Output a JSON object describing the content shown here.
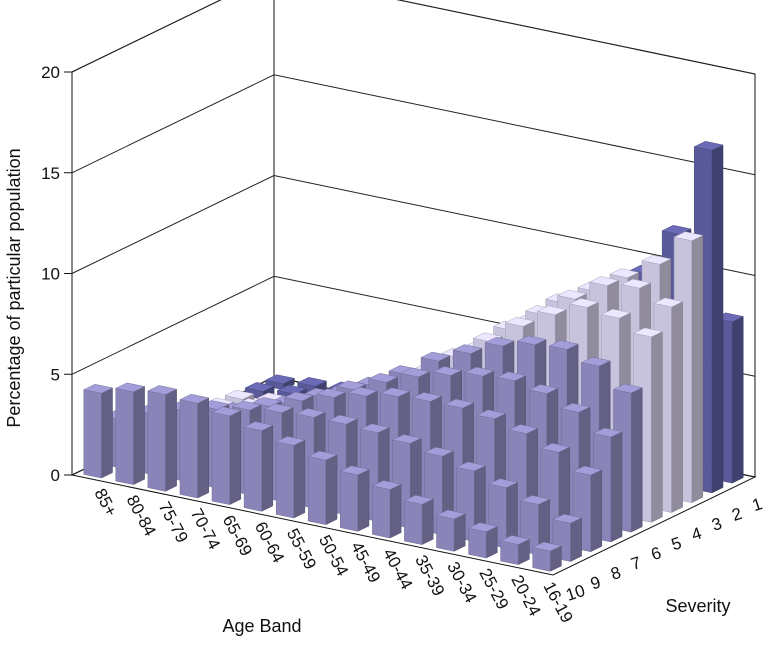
{
  "chart_data": {
    "type": "bar",
    "style": "3d-grouped-bars",
    "ylabel": "Percentage of particular population",
    "xlabel": "Age Band",
    "zlabel": "Severity",
    "ylim": [
      0,
      20
    ],
    "yticks": [
      "0",
      "5",
      "10",
      "15",
      "20"
    ],
    "categories": [
      "85+",
      "80-84",
      "75-79",
      "70-74",
      "65-69",
      "60-64",
      "55-59",
      "50-54",
      "45-49",
      "40-44",
      "35-39",
      "30-34",
      "25-29",
      "20-24",
      "16-19"
    ],
    "severity_labels": [
      "1",
      "2",
      "3",
      "4",
      "5",
      "6",
      "7",
      "8",
      "9",
      "10"
    ],
    "grid": true,
    "colors": {
      "top_band": "#5a5a9a",
      "bottom_band": "#8a85b8",
      "middle_band": "#c8c3dc"
    },
    "series": [
      {
        "name": "1",
        "values": [
          0.3,
          0.5,
          0.6,
          1.0,
          1.4,
          2.0,
          2.8,
          3.6,
          4.5,
          5.5,
          6.3,
          6.5,
          6.8,
          7.2,
          8.0
        ]
      },
      {
        "name": "2",
        "values": [
          0.4,
          0.6,
          0.7,
          1.2,
          1.6,
          2.4,
          3.2,
          4.3,
          5.4,
          6.8,
          8.0,
          9.1,
          10.2,
          12.5,
          17.0
        ]
      },
      {
        "name": "3",
        "values": [
          0.5,
          0.7,
          0.9,
          1.4,
          1.9,
          2.6,
          3.5,
          4.6,
          5.8,
          7.2,
          8.6,
          9.5,
          10.5,
          11.5,
          13.0
        ]
      },
      {
        "name": "4",
        "values": [
          0.6,
          0.9,
          1.1,
          1.6,
          2.2,
          2.9,
          3.7,
          4.8,
          6.0,
          7.4,
          8.5,
          9.6,
          10.6,
          10.8,
          10.2
        ]
      },
      {
        "name": "5",
        "values": [
          0.7,
          1.0,
          1.3,
          1.9,
          2.5,
          3.2,
          4.0,
          5.0,
          6.2,
          7.3,
          8.4,
          9.3,
          10.0,
          9.8,
          9.2
        ]
      },
      {
        "name": "6",
        "values": [
          0.9,
          1.3,
          1.7,
          2.3,
          3.0,
          3.8,
          4.6,
          5.5,
          6.5,
          7.2,
          7.9,
          8.3,
          8.4,
          7.9,
          6.9
        ]
      },
      {
        "name": "7",
        "values": [
          1.2,
          1.7,
          2.1,
          2.8,
          3.5,
          4.2,
          4.9,
          5.6,
          6.2,
          6.6,
          6.9,
          7.0,
          6.7,
          6.1,
          5.2
        ]
      },
      {
        "name": "8",
        "values": [
          1.6,
          2.2,
          2.7,
          3.3,
          3.9,
          4.5,
          5.0,
          5.4,
          5.7,
          5.8,
          5.8,
          5.6,
          5.2,
          4.6,
          3.8
        ]
      },
      {
        "name": "9",
        "values": [
          2.4,
          3.0,
          3.5,
          3.9,
          4.2,
          4.4,
          4.5,
          4.5,
          4.4,
          4.2,
          3.9,
          3.5,
          3.0,
          2.5,
          1.9
        ]
      },
      {
        "name": "10",
        "values": [
          4.2,
          4.6,
          4.8,
          4.7,
          4.4,
          4.0,
          3.6,
          3.2,
          2.8,
          2.4,
          2.0,
          1.6,
          1.3,
          1.0,
          1.0
        ]
      }
    ]
  }
}
